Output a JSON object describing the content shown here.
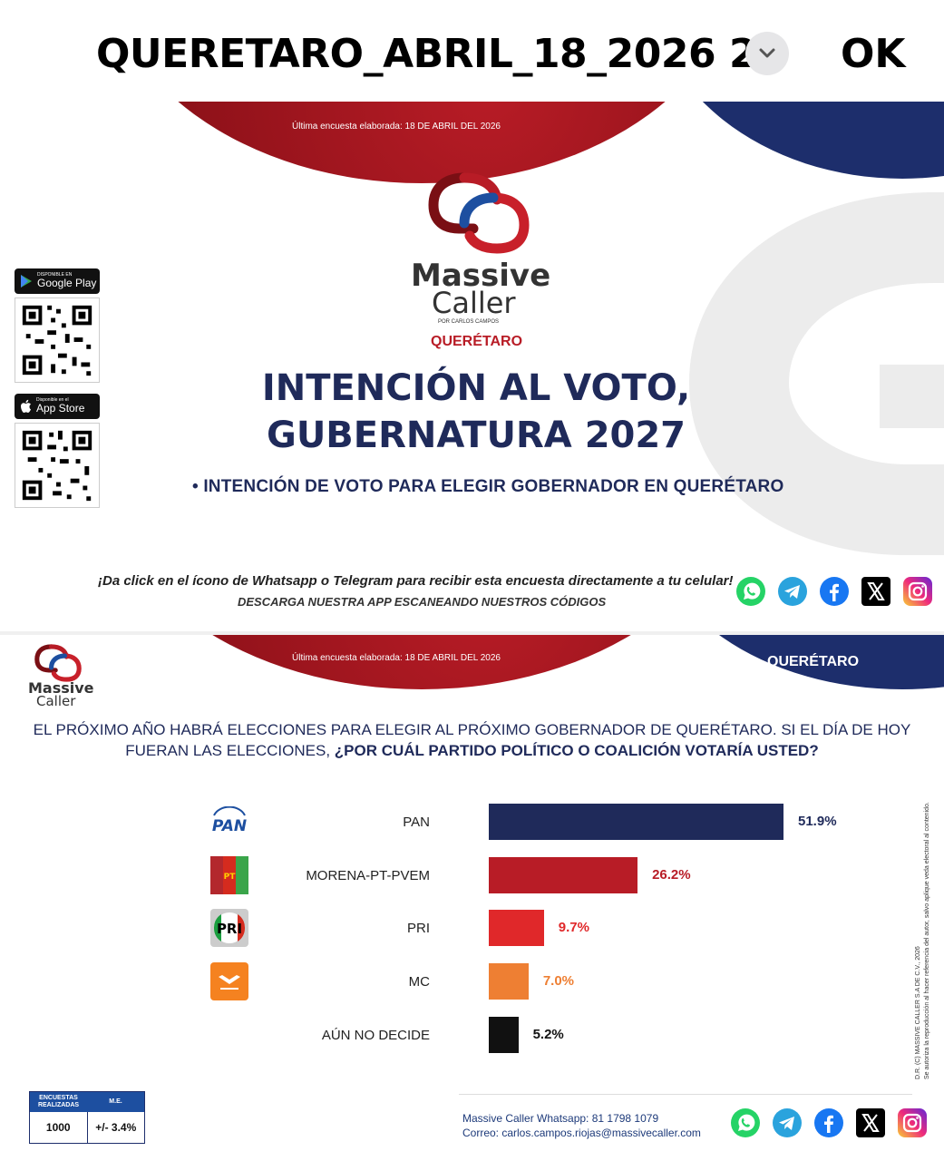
{
  "viewer": {
    "file_title": "QUERETARO_ABRIL_18_2026 2",
    "ok_label": "OK"
  },
  "slide1": {
    "survey_date": "Última encuesta elaborada: 18 DE ABRIL DEL 2026",
    "logo_main": "Massive",
    "logo_sub": "Caller",
    "logo_by": "POR CARLOS CAMPOS",
    "state": "QUERÉTARO",
    "title_line1": "INTENCIÓN AL VOTO,",
    "title_line2": "GUBERNATURA 2027",
    "bullet": "• INTENCIÓN DE VOTO PARA ELEGIR GOBERNADOR EN QUERÉTARO",
    "google_play_small": "DISPONIBLE EN",
    "google_play_big": "Google Play",
    "app_store_small": "Disponible en el",
    "app_store_big": "App Store",
    "cta_line1": "¡Da click en el ícono de Whatsapp o Telegram para recibir esta encuesta directamente a tu celular!",
    "cta_line2": "DESCARGA NUESTRA APP ESCANEANDO NUESTROS CÓDIGOS",
    "social_icons": [
      "whatsapp-icon",
      "telegram-icon",
      "facebook-icon",
      "x-icon",
      "instagram-icon"
    ]
  },
  "slide2": {
    "survey_date": "Última encuesta elaborada: 18 DE ABRIL DEL 2026",
    "state": "QUERÉTARO",
    "logo_main": "Massive",
    "logo_sub": "Caller",
    "question_line1": "EL PRÓXIMO AÑO HABRÁ ELECCIONES PARA ELEGIR AL PRÓXIMO GOBERNADOR DE QUERÉTARO. SI EL DÍA DE HOY",
    "question_line2_plain": "FUERAN LAS ELECCIONES, ",
    "question_line2_bold": "¿POR CUÁL PARTIDO POLÍTICO O COALICIÓN VOTARÍA USTED?",
    "legal_line1": "D.R. (C) MASSIVE CALLER S.A DE C.V., 2026",
    "legal_line2": "Se autoriza la reproducción al hacer referencia del autor, salvo aplique veda electoral al contenido.",
    "stats": {
      "header_left": "ENCUESTAS REALIZADAS",
      "header_right": "M.E.",
      "value_left": "1000",
      "value_right": "+/- 3.4%"
    },
    "contact_whatsapp": "Massive Caller Whatsapp: 81 1798 1079",
    "contact_email": "Correo: carlos.campos.riojas@massivecaller.com"
  },
  "chart_data": {
    "type": "bar",
    "orientation": "horizontal",
    "categories": [
      "PAN",
      "MORENA-PT-PVEM",
      "PRI",
      "MC",
      "AÚN NO DECIDE"
    ],
    "values": [
      51.9,
      26.2,
      9.7,
      7.0,
      5.2
    ],
    "value_labels": [
      "51.9%",
      "26.2%",
      "9.7%",
      "7.0%",
      "5.2%"
    ],
    "colors": [
      "#1f2a5a",
      "#b81c26",
      "#e0282a",
      "#ee7f33",
      "#111111"
    ],
    "label_colors": [
      "#1f2a5a",
      "#b81c26",
      "#e0282a",
      "#ee7f33",
      "#111111"
    ],
    "party_logos": [
      "pan-logo",
      "morena-pt-pvem-logo",
      "pri-logo",
      "mc-logo",
      ""
    ],
    "xlim": [
      0,
      51.9
    ]
  }
}
